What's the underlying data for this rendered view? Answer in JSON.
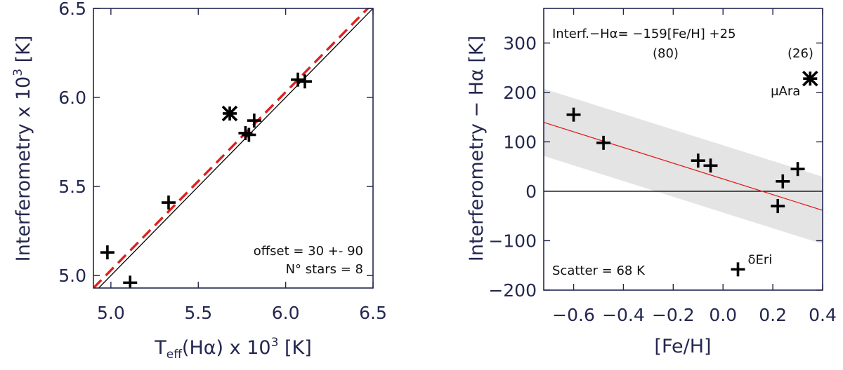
{
  "chart_data": [
    {
      "type": "scatter",
      "panel": "left",
      "xlabel_parts": {
        "base": "T",
        "sub": "eff",
        "rest": "(Hα) x 10",
        "sup": "3",
        "unit": " [K]"
      },
      "ylabel_parts": {
        "base": "Interferometry x 10",
        "sup": "3",
        "unit": " [K]"
      },
      "xlim": [
        4.9,
        6.5
      ],
      "ylim": [
        4.93,
        6.5
      ],
      "xticks": [
        5.0,
        5.5,
        6.0,
        6.5
      ],
      "xtick_labels": [
        "5.0",
        "5.5",
        "6.0",
        "6.5"
      ],
      "yticks": [
        5.0,
        5.5,
        6.0,
        6.5
      ],
      "ytick_labels": [
        "5.0",
        "5.5",
        "6.0",
        "6.5"
      ],
      "points": [
        {
          "x": 4.98,
          "y": 5.13,
          "marker": "plus"
        },
        {
          "x": 5.11,
          "y": 4.96,
          "marker": "plus"
        },
        {
          "x": 5.33,
          "y": 5.41,
          "marker": "plus"
        },
        {
          "x": 5.68,
          "y": 5.91,
          "marker": "asterisk"
        },
        {
          "x": 5.77,
          "y": 5.8,
          "marker": "plus"
        },
        {
          "x": 5.79,
          "y": 5.79,
          "marker": "plus"
        },
        {
          "x": 5.82,
          "y": 5.87,
          "marker": "plus"
        },
        {
          "x": 6.07,
          "y": 6.1,
          "marker": "plus"
        },
        {
          "x": 6.11,
          "y": 6.09,
          "marker": "plus"
        }
      ],
      "identity_line": {
        "from": [
          4.9,
          4.9
        ],
        "to": [
          6.5,
          6.5
        ],
        "color": "#000000"
      },
      "offset_line": {
        "from": [
          4.9,
          4.93
        ],
        "to": [
          6.5,
          6.53
        ],
        "color": "#e0201e"
      },
      "annotations": {
        "offset": "offset = 30 +- 90",
        "nstars": "N° stars =  8"
      }
    },
    {
      "type": "scatter",
      "panel": "right",
      "xlabel": "[Fe/H]",
      "ylabel_parts": {
        "base": "Interferometry − Hα",
        "unit": " [K]"
      },
      "xlim": [
        -0.72,
        0.4
      ],
      "ylim": [
        -200,
        370
      ],
      "xticks": [
        -0.6,
        -0.4,
        -0.2,
        0.0,
        0.2,
        0.4
      ],
      "xtick_labels": [
        "−0.6",
        "−0.4",
        "−0.2",
        "0.0",
        "0.2",
        "0.4"
      ],
      "yticks": [
        -200,
        -100,
        0,
        100,
        200,
        300
      ],
      "ytick_labels": [
        "−200",
        "−100",
        "0",
        "100",
        "200",
        "300"
      ],
      "points": [
        {
          "x": -0.6,
          "y": 155,
          "marker": "plus"
        },
        {
          "x": -0.48,
          "y": 98,
          "marker": "plus"
        },
        {
          "x": -0.1,
          "y": 62,
          "marker": "plus"
        },
        {
          "x": -0.05,
          "y": 52,
          "marker": "plus"
        },
        {
          "x": 0.06,
          "y": -158,
          "marker": "plus",
          "label": "δEri"
        },
        {
          "x": 0.22,
          "y": -30,
          "marker": "plus"
        },
        {
          "x": 0.24,
          "y": 20,
          "marker": "plus"
        },
        {
          "x": 0.3,
          "y": 45,
          "marker": "plus"
        },
        {
          "x": 0.35,
          "y": 228,
          "marker": "asterisk",
          "label": "μAra"
        }
      ],
      "fit": {
        "slope": -159,
        "intercept": 25,
        "color": "#e0201e"
      },
      "band_halfwidth": 68,
      "zero_line": 0,
      "annotations": {
        "equation": "Interf.−Hα=  −159[Fe/H] +25",
        "err1": "(80)",
        "err2": "(26)",
        "scatter": "Scatter = 68 K"
      }
    }
  ]
}
